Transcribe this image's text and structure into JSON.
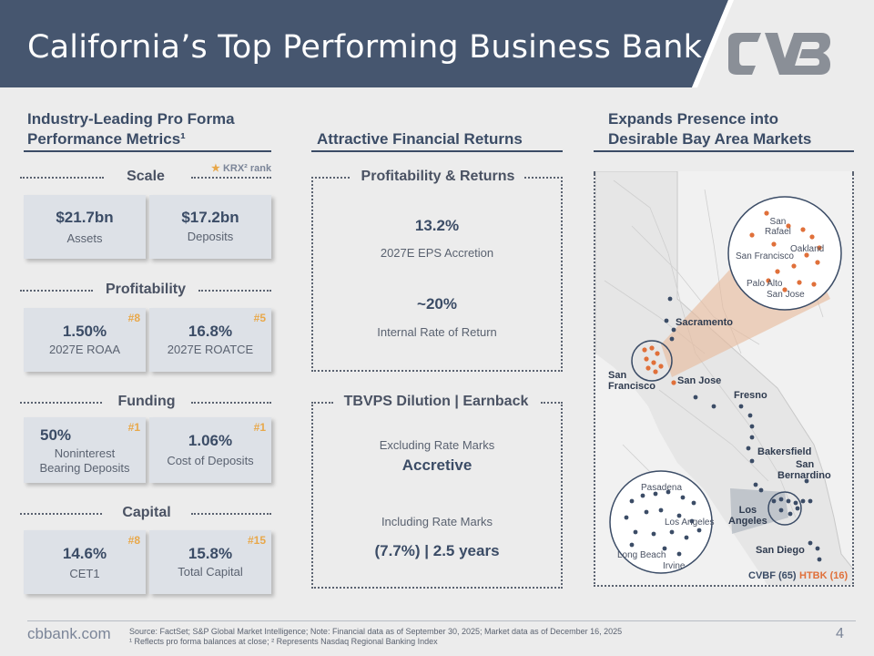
{
  "title": "California’s Top Performing Business Bank",
  "logo_icon": "cvb-logo",
  "columns": {
    "left_heading": "Industry-Leading Pro Forma Performance Metrics¹",
    "left_heading_l1": "Industry-Leading Pro Forma",
    "left_heading_l2": "Performance Metrics¹",
    "mid_heading": "Attractive Financial Returns",
    "right_heading_l1": "Expands Presence into",
    "right_heading_l2": "Desirable Bay Area Markets"
  },
  "krx_note": "KRX² rank",
  "sections": {
    "scale": "Scale",
    "profitability": "Profitability",
    "funding": "Funding",
    "capital": "Capital"
  },
  "cards": {
    "assets": {
      "value": "$21.7bn",
      "label": "Assets",
      "rank": ""
    },
    "deposits": {
      "value": "$17.2bn",
      "label": "Deposits",
      "rank": ""
    },
    "roaa": {
      "value": "1.50%",
      "label": "2027E ROAA",
      "rank": "#8"
    },
    "roatce": {
      "value": "16.8%",
      "label": "2027E ROATCE",
      "rank": "#5"
    },
    "nib": {
      "value": "50%",
      "label_l1": "Noninterest",
      "label_l2": "Bearing Deposits",
      "rank": "#1"
    },
    "cod": {
      "value": "1.06%",
      "label": "Cost of Deposits",
      "rank": "#1"
    },
    "cet1": {
      "value": "14.6%",
      "label": "CET1",
      "rank": "#8"
    },
    "total_capital": {
      "value": "15.8%",
      "label": "Total Capital",
      "rank": "#15"
    }
  },
  "middle": {
    "box1_title": "Profitability & Returns",
    "eps_value": "13.2%",
    "eps_label": "2027E EPS Accretion",
    "irr_value": "~20%",
    "irr_label": "Internal Rate of Return",
    "box2_title": "TBVPS Dilution | Earnback",
    "excl_label": "Excluding Rate Marks",
    "excl_value": "Accretive",
    "incl_label": "Including Rate Marks",
    "incl_value": "(7.7%) | 2.5 years"
  },
  "map": {
    "cities": {
      "sacramento": "Sacramento",
      "san_francisco_l1": "San",
      "san_francisco_l2": "Francisco",
      "san_jose": "San Jose",
      "fresno": "Fresno",
      "bakersfield": "Bakersfield",
      "san_bernardino_l1": "San",
      "san_bernardino_l2": "Bernardino",
      "los_angeles_l1": "Los",
      "los_angeles_l2": "Angeles",
      "san_diego": "San Diego"
    },
    "bay_inset": {
      "san_rafael_l1": "San",
      "san_rafael_l2": "Rafael",
      "oakland": "Oakland",
      "san_francisco": "San Francisco",
      "palo_alto": "Palo Alto",
      "san_jose": "San Jose"
    },
    "la_inset": {
      "pasadena": "Pasadena",
      "los_angeles": "Los Angeles",
      "long_beach": "Long Beach",
      "irvine": "Irvine"
    },
    "legend_cvbf": "CVBF (65)",
    "legend_htbk": "HTBK (16)",
    "colors": {
      "cvbf": "#3b4c66",
      "htbk": "#e0703a"
    }
  },
  "footer": {
    "site": "cbbank.com",
    "source_l1": "Source: FactSet; S&P Global Market Intelligence; Note: Financial data as of September 30, 2025; Market data as of December 16, 2025",
    "source_l2": "¹ Reflects pro forma balances at close; ² Represents Nasdaq Regional Banking Index",
    "page": "4"
  },
  "colors": {
    "header": "#46566f",
    "accent": "#e8a84a",
    "text": "#3b4c66"
  }
}
